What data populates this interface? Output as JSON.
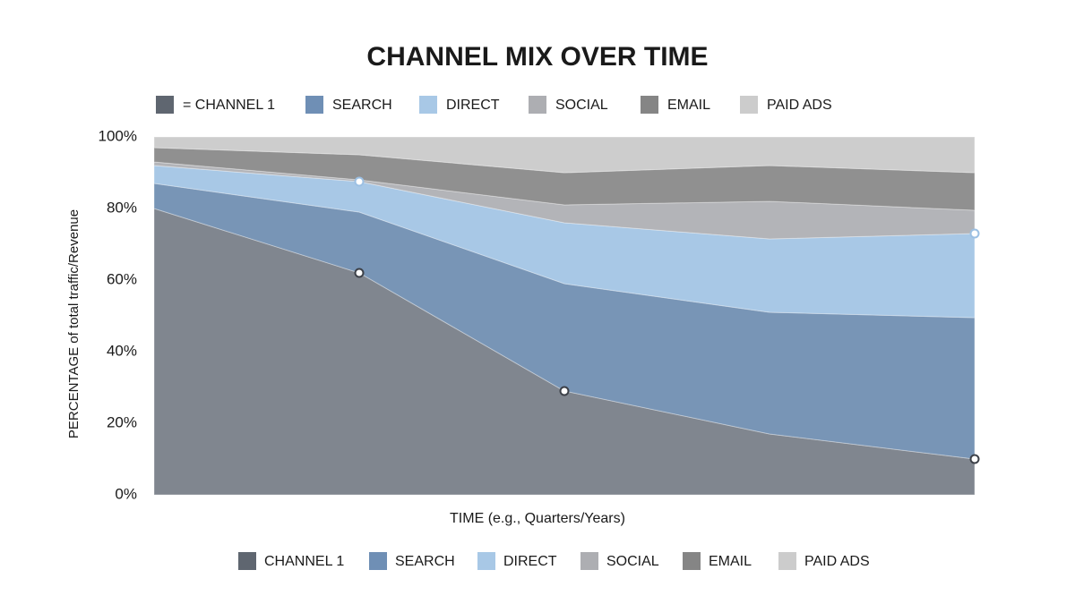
{
  "chart_data": {
    "type": "stacked-area",
    "title": "CHANNEL MIX OVER TIME",
    "x_label": "TIME (e.g., Quarters/Years)",
    "y_label": "PERCENTAGE of total traffic/Revenue",
    "legend_labels": [
      "= CHANNEL 1",
      "SEARCH",
      "DIRECT",
      "SOCIAL",
      "EMAIL",
      "PAID ADS"
    ],
    "legend_colors": [
      "#5f6670",
      "#6f8fb5",
      "#a8c8e6",
      "#adaeb2",
      "#858585",
      "#cccccc"
    ],
    "categories": [
      null,
      null,
      null,
      null,
      null
    ],
    "series": [
      {
        "name": "CHANNEL 1",
        "color": "#80868f",
        "values": [
          80,
          62,
          29,
          17,
          10
        ]
      },
      {
        "name": "SEARCH",
        "color": "#7895b6",
        "values": [
          7,
          17,
          30,
          34,
          39.5
        ]
      },
      {
        "name": "DIRECT",
        "color": "#a8c8e6",
        "values": [
          5,
          8.5,
          17,
          20.5,
          23.5
        ]
      },
      {
        "name": "SOCIAL",
        "color": "#b3b4b8",
        "values": [
          1,
          0.5,
          5,
          10.5,
          6.5
        ]
      },
      {
        "name": "EMAIL",
        "color": "#909090",
        "values": [
          4,
          7,
          9,
          10,
          10.5
        ]
      },
      {
        "name": "PAID ADS",
        "color": "#cdcdcd",
        "values": [
          3,
          5,
          10,
          8,
          10
        ]
      }
    ],
    "ylim": [
      0,
      100
    ],
    "yticks": [
      {
        "value": 0,
        "label": "0%"
      },
      {
        "value": 20,
        "label": "20%"
      },
      {
        "value": 40,
        "label": "40%"
      },
      {
        "value": 60,
        "label": "60%"
      },
      {
        "value": 80,
        "label": "80%"
      },
      {
        "value": 100,
        "label": "100%"
      }
    ],
    "grid": false
  }
}
